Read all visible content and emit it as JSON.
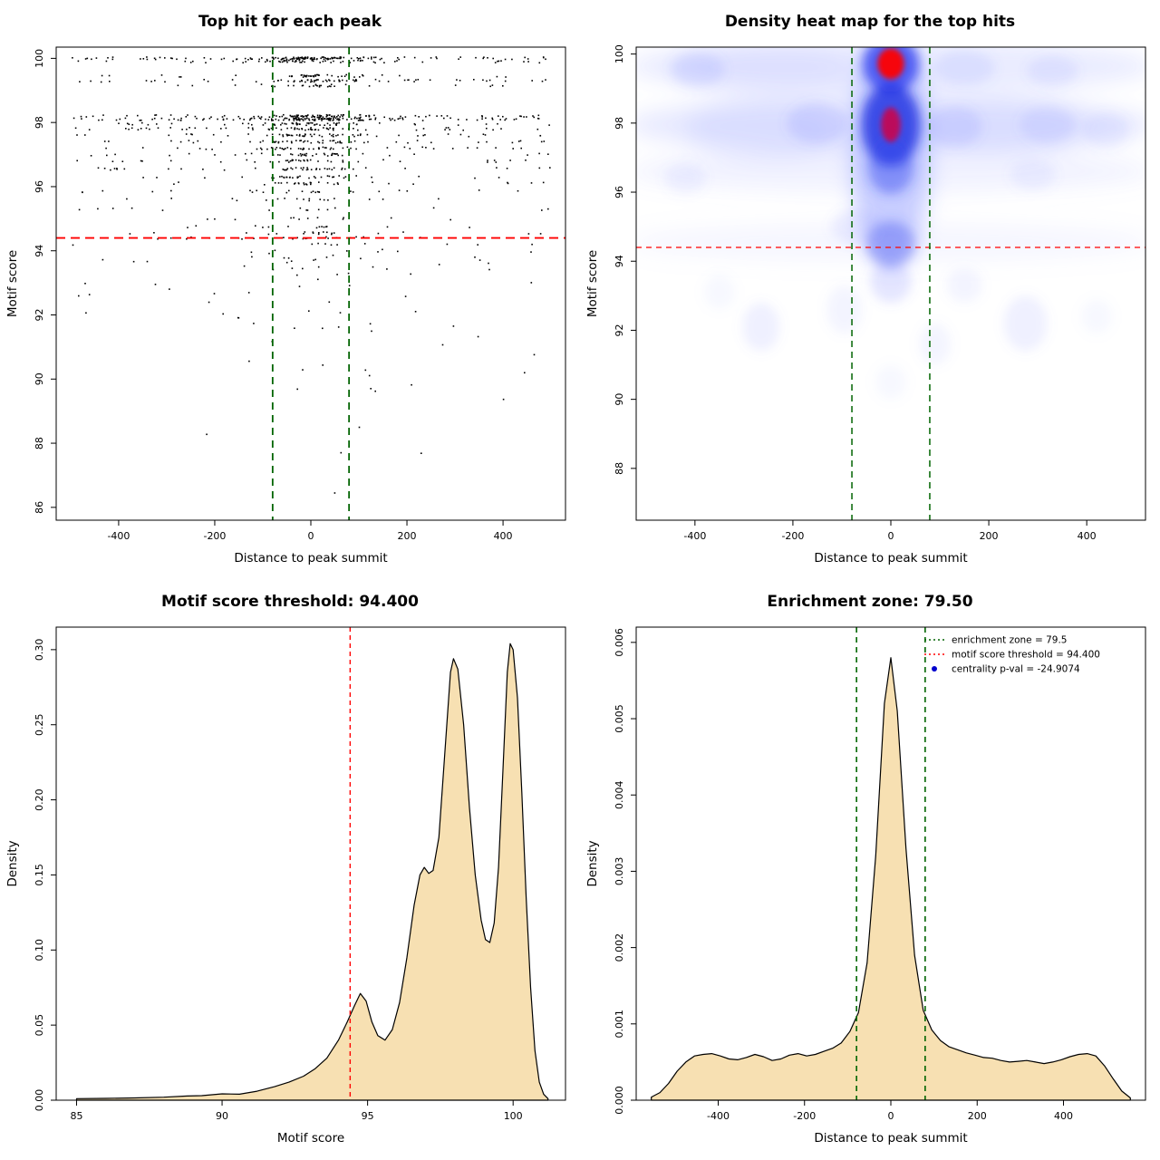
{
  "colors": {
    "green_dash": "#006400",
    "red_dash": "#ff0000",
    "wheat_fill": "#f7e0b2",
    "point_black": "#000000",
    "legend_blue": "#0000cd"
  },
  "chart_data": [
    {
      "type": "scatter",
      "title": "Top hit for each peak",
      "xlabel": "Distance to peak summit",
      "ylabel": "Motif score",
      "xlim": [
        -530,
        530
      ],
      "ylim": [
        85.6,
        100.35
      ],
      "xticks": [
        -400,
        -200,
        0,
        200,
        400
      ],
      "xticklabels": [
        "-400",
        "-200",
        "0",
        "200",
        "400"
      ],
      "yticks": [
        86,
        88,
        90,
        92,
        94,
        96,
        98,
        100
      ],
      "yticklabels": [
        "86",
        "88",
        "90",
        "92",
        "94",
        "96",
        "98",
        "100"
      ],
      "threshold": {
        "y": 94.4,
        "color": "#ff0000"
      },
      "zone": {
        "x": [
          -79.5,
          79.5
        ],
        "color": "#006400"
      },
      "point_color": "#000000",
      "seed": 42,
      "center_frac": 0.5,
      "center_sd": 55,
      "sparse_n": 85,
      "bands": [
        [
          100.0,
          150
        ],
        [
          99.9,
          60
        ],
        [
          99.45,
          45
        ],
        [
          99.3,
          70
        ],
        [
          99.15,
          30
        ],
        [
          98.2,
          110
        ],
        [
          98.1,
          150
        ],
        [
          97.95,
          60
        ],
        [
          97.8,
          70
        ],
        [
          97.6,
          60
        ],
        [
          97.4,
          55
        ],
        [
          97.2,
          55
        ],
        [
          97.0,
          45
        ],
        [
          96.8,
          40
        ],
        [
          96.55,
          45
        ],
        [
          96.3,
          35
        ],
        [
          96.1,
          30
        ],
        [
          95.85,
          25
        ],
        [
          95.6,
          18
        ],
        [
          95.3,
          15
        ],
        [
          95.0,
          12
        ],
        [
          94.75,
          14
        ],
        [
          94.55,
          20
        ],
        [
          94.4,
          22
        ],
        [
          94.2,
          10
        ]
      ]
    },
    {
      "type": "heatmap",
      "title": "Density heat map for the top hits",
      "xlabel": "Distance to peak summit",
      "ylabel": "Motif score",
      "xlim": [
        -520,
        520
      ],
      "ylim": [
        86.5,
        100.2
      ],
      "xticks": [
        -400,
        -200,
        0,
        200,
        400
      ],
      "xticklabels": [
        "-400",
        "-200",
        "0",
        "200",
        "400"
      ],
      "yticks": [
        88,
        90,
        92,
        94,
        96,
        98,
        100
      ],
      "yticklabels": [
        "88",
        "90",
        "92",
        "94",
        "96",
        "98",
        "100"
      ],
      "threshold": {
        "y": 94.4,
        "color": "#ff0000"
      },
      "zone": {
        "x": [
          -79.5,
          79.5
        ],
        "color": "#006400"
      },
      "hot_spots": [
        {
          "x": 0,
          "y": 99.7,
          "intensity": "max-red"
        },
        {
          "x": 0,
          "y": 97.95,
          "intensity": "high-red"
        },
        {
          "x": 0,
          "y": 94.5,
          "intensity": "medium-blue"
        }
      ],
      "blobs": [
        [
          0,
          99.65,
          540,
          0.8,
          "#7b86ff",
          0.16,
          "f10"
        ],
        [
          -260,
          99.6,
          190,
          0.7,
          "#6b78ff",
          0.1,
          "f10"
        ],
        [
          0,
          97.95,
          540,
          0.85,
          "#7b86ff",
          0.18,
          "f10"
        ],
        [
          -260,
          97.8,
          160,
          0.9,
          "#6b78ff",
          0.1,
          "f10"
        ],
        [
          240,
          97.9,
          170,
          0.8,
          "#6b78ff",
          0.1,
          "f10"
        ],
        [
          0,
          96.6,
          540,
          0.6,
          "#8d97ff",
          0.12,
          "f10"
        ],
        [
          0,
          94.55,
          540,
          0.55,
          "#9aa3ff",
          0.1,
          "f10"
        ],
        [
          0,
          97.2,
          80,
          3.4,
          "#4a5cff",
          0.3,
          "f10"
        ],
        [
          0,
          99.7,
          58,
          0.8,
          "#2233ee",
          0.72,
          "f6"
        ],
        [
          0,
          97.95,
          60,
          1.2,
          "#1a2ae0",
          0.78,
          "f6"
        ],
        [
          0,
          96.75,
          46,
          0.8,
          "#3344ee",
          0.42,
          "f6"
        ],
        [
          0,
          94.5,
          50,
          0.65,
          "#4455ee",
          0.38,
          "f6"
        ],
        [
          0,
          93.4,
          42,
          0.6,
          "#6a76ff",
          0.18,
          "f6"
        ],
        [
          -395,
          99.55,
          55,
          0.5,
          "#6b78ff",
          0.14,
          "f6"
        ],
        [
          150,
          99.6,
          62,
          0.5,
          "#6b78ff",
          0.13,
          "f6"
        ],
        [
          330,
          99.5,
          52,
          0.45,
          "#6b78ff",
          0.11,
          "f6"
        ],
        [
          -150,
          98.0,
          62,
          0.6,
          "#5b68ff",
          0.15,
          "f6"
        ],
        [
          130,
          97.9,
          56,
          0.6,
          "#5b68ff",
          0.14,
          "f6"
        ],
        [
          320,
          97.95,
          56,
          0.55,
          "#6b78ff",
          0.12,
          "f6"
        ],
        [
          440,
          97.8,
          46,
          0.5,
          "#6b78ff",
          0.1,
          "f6"
        ],
        [
          -420,
          96.4,
          42,
          0.45,
          "#7b86ff",
          0.09,
          "f6"
        ],
        [
          290,
          96.5,
          46,
          0.45,
          "#7b86ff",
          0.09,
          "f6"
        ],
        [
          -70,
          95.0,
          52,
          0.5,
          "#7b86ff",
          0.12,
          "f6"
        ],
        [
          -265,
          92.1,
          38,
          0.7,
          "#7b86ff",
          0.12,
          "f6"
        ],
        [
          275,
          92.2,
          44,
          0.8,
          "#7b86ff",
          0.12,
          "f6"
        ],
        [
          90,
          91.6,
          32,
          0.6,
          "#8d97ff",
          0.1,
          "f6"
        ],
        [
          -95,
          92.6,
          36,
          0.7,
          "#8d97ff",
          0.1,
          "f6"
        ],
        [
          150,
          93.3,
          36,
          0.5,
          "#8d97ff",
          0.1,
          "f6"
        ],
        [
          -350,
          93.1,
          32,
          0.5,
          "#9aa3ff",
          0.08,
          "f6"
        ],
        [
          420,
          92.4,
          32,
          0.5,
          "#9aa3ff",
          0.08,
          "f6"
        ],
        [
          0,
          90.5,
          32,
          0.5,
          "#9aa3ff",
          0.08,
          "f6"
        ],
        [
          0,
          99.72,
          27,
          0.45,
          "#ff0000",
          0.95,
          "f3"
        ],
        [
          0,
          97.95,
          20,
          0.5,
          "#d10043",
          0.85,
          "f3"
        ]
      ]
    },
    {
      "type": "area",
      "title": "Motif score threshold: 94.400",
      "xlabel": "Motif score",
      "ylabel": "Density",
      "xlim": [
        84.3,
        101.8
      ],
      "ylim": [
        0,
        0.315
      ],
      "xticks": [
        85,
        90,
        95,
        100
      ],
      "xticklabels": [
        "85",
        "90",
        "95",
        "100"
      ],
      "yticks": [
        0,
        0.05,
        0.1,
        0.15,
        0.2,
        0.25,
        0.3
      ],
      "yticklabels": [
        "0.00",
        "0.05",
        "0.10",
        "0.15",
        "0.20",
        "0.25",
        "0.30"
      ],
      "fill": "#f7e0b2",
      "vlines": [
        {
          "x": 94.4,
          "color": "#ff0000",
          "dash": "5,4",
          "width": 1.4
        }
      ],
      "points": [
        [
          85,
          0.001
        ],
        [
          86,
          0.0012
        ],
        [
          87,
          0.0015
        ],
        [
          88,
          0.002
        ],
        [
          88.8,
          0.0028
        ],
        [
          89.3,
          0.003
        ],
        [
          90,
          0.0042
        ],
        [
          90.6,
          0.004
        ],
        [
          91.2,
          0.006
        ],
        [
          91.8,
          0.009
        ],
        [
          92.3,
          0.012
        ],
        [
          92.8,
          0.016
        ],
        [
          93.2,
          0.021
        ],
        [
          93.6,
          0.028
        ],
        [
          94.0,
          0.04
        ],
        [
          94.3,
          0.052
        ],
        [
          94.55,
          0.063
        ],
        [
          94.75,
          0.071
        ],
        [
          94.95,
          0.066
        ],
        [
          95.15,
          0.052
        ],
        [
          95.35,
          0.043
        ],
        [
          95.6,
          0.04
        ],
        [
          95.85,
          0.047
        ],
        [
          96.1,
          0.065
        ],
        [
          96.35,
          0.095
        ],
        [
          96.6,
          0.13
        ],
        [
          96.8,
          0.15
        ],
        [
          96.95,
          0.155
        ],
        [
          97.1,
          0.151
        ],
        [
          97.25,
          0.153
        ],
        [
          97.45,
          0.175
        ],
        [
          97.65,
          0.23
        ],
        [
          97.85,
          0.285
        ],
        [
          97.95,
          0.294
        ],
        [
          98.1,
          0.287
        ],
        [
          98.3,
          0.25
        ],
        [
          98.5,
          0.195
        ],
        [
          98.7,
          0.15
        ],
        [
          98.9,
          0.12
        ],
        [
          99.05,
          0.107
        ],
        [
          99.2,
          0.105
        ],
        [
          99.35,
          0.118
        ],
        [
          99.5,
          0.155
        ],
        [
          99.65,
          0.22
        ],
        [
          99.8,
          0.285
        ],
        [
          99.9,
          0.304
        ],
        [
          100.0,
          0.3
        ],
        [
          100.15,
          0.268
        ],
        [
          100.3,
          0.205
        ],
        [
          100.45,
          0.135
        ],
        [
          100.6,
          0.075
        ],
        [
          100.75,
          0.033
        ],
        [
          100.9,
          0.012
        ],
        [
          101.05,
          0.004
        ],
        [
          101.2,
          0.001
        ]
      ]
    },
    {
      "type": "area",
      "title": "Enrichment zone: 79.50",
      "xlabel": "Distance to peak summit",
      "ylabel": "Density",
      "xlim": [
        -590,
        590
      ],
      "ylim": [
        0,
        0.0062
      ],
      "xticks": [
        -400,
        -200,
        0,
        200,
        400
      ],
      "xticklabels": [
        "-400",
        "-200",
        "0",
        "200",
        "400"
      ],
      "yticks": [
        0,
        0.001,
        0.002,
        0.003,
        0.004,
        0.005,
        0.006
      ],
      "yticklabels": [
        "0.000",
        "0.001",
        "0.002",
        "0.003",
        "0.004",
        "0.005",
        "0.006"
      ],
      "fill": "#f7e0b2",
      "vlines": [
        {
          "x": -79.5,
          "color": "#006400",
          "dash": "6,5",
          "width": 1.6
        },
        {
          "x": 79.5,
          "color": "#006400",
          "dash": "6,5",
          "width": 1.6
        }
      ],
      "legend": {
        "items": [
          {
            "label": "enrichment zone = 79.5",
            "type": "line",
            "color": "#006400"
          },
          {
            "label": "motif score threshold = 94.400",
            "type": "line",
            "color": "#ff0000"
          },
          {
            "label": "centrality p-val = -24.9074",
            "type": "point",
            "color": "#0000cd"
          }
        ]
      },
      "points": [
        [
          -555,
          4e-05
        ],
        [
          -535,
          0.0001
        ],
        [
          -515,
          0.00022
        ],
        [
          -495,
          0.00038
        ],
        [
          -475,
          0.0005
        ],
        [
          -455,
          0.00058
        ],
        [
          -435,
          0.0006
        ],
        [
          -415,
          0.00061
        ],
        [
          -395,
          0.00058
        ],
        [
          -375,
          0.00054
        ],
        [
          -355,
          0.00053
        ],
        [
          -335,
          0.00056
        ],
        [
          -315,
          0.0006
        ],
        [
          -295,
          0.00057
        ],
        [
          -275,
          0.00052
        ],
        [
          -255,
          0.00054
        ],
        [
          -235,
          0.00059
        ],
        [
          -215,
          0.00061
        ],
        [
          -195,
          0.00058
        ],
        [
          -175,
          0.0006
        ],
        [
          -155,
          0.00064
        ],
        [
          -135,
          0.00068
        ],
        [
          -115,
          0.00075
        ],
        [
          -95,
          0.0009
        ],
        [
          -75,
          0.00115
        ],
        [
          -55,
          0.0018
        ],
        [
          -35,
          0.0032
        ],
        [
          -15,
          0.0052
        ],
        [
          0,
          0.0058
        ],
        [
          15,
          0.0051
        ],
        [
          35,
          0.0033
        ],
        [
          55,
          0.0019
        ],
        [
          75,
          0.00118
        ],
        [
          95,
          0.00092
        ],
        [
          115,
          0.00078
        ],
        [
          135,
          0.0007
        ],
        [
          155,
          0.00066
        ],
        [
          175,
          0.00062
        ],
        [
          195,
          0.00059
        ],
        [
          215,
          0.00056
        ],
        [
          235,
          0.00055
        ],
        [
          255,
          0.00052
        ],
        [
          275,
          0.0005
        ],
        [
          295,
          0.00051
        ],
        [
          315,
          0.00052
        ],
        [
          335,
          0.0005
        ],
        [
          355,
          0.00048
        ],
        [
          375,
          0.0005
        ],
        [
          395,
          0.00053
        ],
        [
          415,
          0.00057
        ],
        [
          435,
          0.0006
        ],
        [
          455,
          0.00061
        ],
        [
          475,
          0.00058
        ],
        [
          495,
          0.00045
        ],
        [
          515,
          0.00028
        ],
        [
          535,
          0.00012
        ],
        [
          555,
          3e-05
        ]
      ]
    }
  ]
}
